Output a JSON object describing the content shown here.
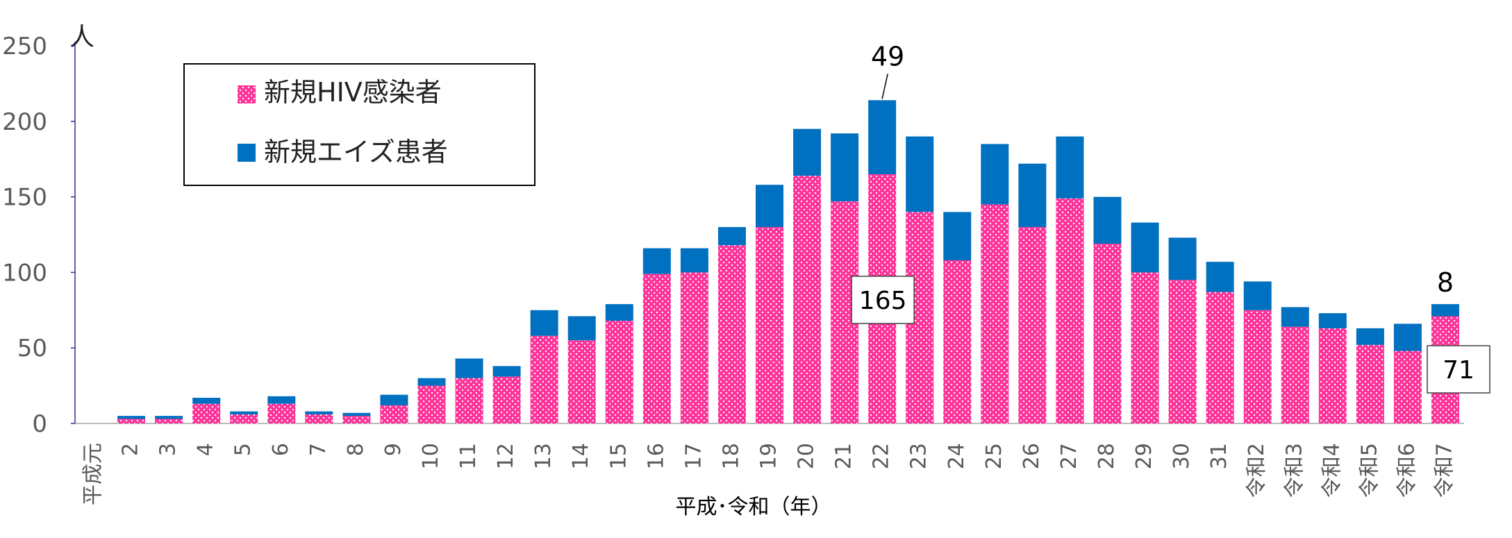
{
  "chart_data": {
    "type": "bar",
    "stacked": true,
    "y_unit_label": "人",
    "xlabel": "平成･令和（年）",
    "ylim": [
      0,
      250
    ],
    "y_ticks": [
      0,
      50,
      100,
      150,
      200,
      250
    ],
    "grid": false,
    "legend_position": "top-left",
    "categories": [
      "平成元",
      "2",
      "3",
      "4",
      "5",
      "6",
      "7",
      "8",
      "9",
      "10",
      "11",
      "12",
      "13",
      "14",
      "15",
      "16",
      "17",
      "18",
      "19",
      "20",
      "21",
      "22",
      "23",
      "24",
      "25",
      "26",
      "27",
      "28",
      "29",
      "30",
      "31",
      "令和2",
      "令和3",
      "令和4",
      "令和5",
      "令和6",
      "令和7"
    ],
    "series": [
      {
        "name": "新規HIV感染者",
        "color": "#ff3399",
        "pattern": "white-dots",
        "values": [
          0,
          3,
          3,
          13,
          6,
          13,
          6,
          5,
          12,
          25,
          30,
          31,
          58,
          55,
          68,
          99,
          100,
          118,
          130,
          164,
          147,
          165,
          140,
          108,
          145,
          130,
          149,
          119,
          100,
          95,
          87,
          75,
          64,
          63,
          52,
          48,
          71
        ]
      },
      {
        "name": "新規エイズ患者",
        "color": "#0070c0",
        "values": [
          0,
          2,
          2,
          4,
          2,
          5,
          2,
          2,
          7,
          5,
          13,
          7,
          17,
          16,
          11,
          17,
          16,
          12,
          28,
          31,
          45,
          49,
          50,
          32,
          40,
          42,
          41,
          31,
          33,
          28,
          20,
          19,
          13,
          10,
          11,
          18,
          8
        ]
      }
    ],
    "annotations": [
      {
        "category": "22",
        "series": "新規エイズ患者",
        "text": "49",
        "style": "label-with-leader"
      },
      {
        "category": "22",
        "series": "新規HIV感染者",
        "text": "165",
        "style": "boxed"
      },
      {
        "category": "令和7",
        "series": "新規エイズ患者",
        "text": "8",
        "style": "label"
      },
      {
        "category": "令和7",
        "series": "新規HIV感染者",
        "text": "71",
        "style": "boxed"
      }
    ]
  }
}
